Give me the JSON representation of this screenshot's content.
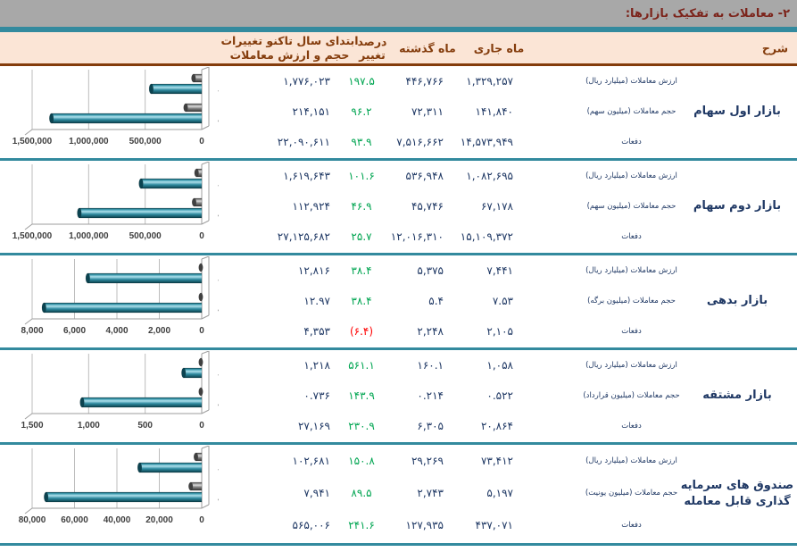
{
  "title": "۲- معاملات به تفکیک بازارها:",
  "colors": {
    "title_bar_bg": "#a8a8a8",
    "title_text": "#7c241b",
    "accent_teal": "#338a9e",
    "header_bg": "#fbe5d6",
    "header_text": "#843c0c",
    "value_navy": "#1f3864",
    "positive_green": "#00a551",
    "negative_red": "#ff0000",
    "bar_teal": "#2f8ba0",
    "bar_gray": "#8c8c8c"
  },
  "header": {
    "description": "شرح",
    "current_month": "ماه جاری",
    "last_month": "ماه گذشته",
    "pct_change": "درصد تغییر",
    "ytd": "ابتدای سال تاکنو تغییرات حجم و ارزش معاملات"
  },
  "sections": [
    {
      "market": "بازار اول سهام",
      "rows": [
        {
          "label": "ارزش معاملات (میلیارد ریال)",
          "current": "۱,۳۲۹,۲۵۷",
          "last": "۴۴۶,۷۶۶",
          "pct": "۱۹۷.۵",
          "negative": false,
          "ytd": "۱,۷۷۶,۰۲۳"
        },
        {
          "label": "حجم معاملات (میلیون سهم)",
          "current": "۱۴۱,۸۴۰",
          "last": "۷۲,۳۱۱",
          "pct": "۹۶.۲",
          "negative": false,
          "ytd": "۲۱۴,۱۵۱"
        },
        {
          "label": "دفعات",
          "current": "۱۴,۵۷۳,۹۴۹",
          "last": "۷,۵۱۶,۶۶۲",
          "pct": "۹۳.۹",
          "negative": false,
          "ytd": "۲۲,۰۹۰,۶۱۱"
        }
      ]
    },
    {
      "market": "بازار دوم سهام",
      "rows": [
        {
          "label": "ارزش معاملات (میلیارد ریال)",
          "current": "۱,۰۸۲,۶۹۵",
          "last": "۵۳۶,۹۴۸",
          "pct": "۱۰۱.۶",
          "negative": false,
          "ytd": "۱,۶۱۹,۶۴۳"
        },
        {
          "label": "حجم معاملات (میلیون سهم)",
          "current": "۶۷,۱۷۸",
          "last": "۴۵,۷۴۶",
          "pct": "۴۶.۹",
          "negative": false,
          "ytd": "۱۱۲,۹۲۴"
        },
        {
          "label": "دفعات",
          "current": "۱۵,۱۰۹,۳۷۲",
          "last": "۱۲,۰۱۶,۳۱۰",
          "pct": "۲۵.۷",
          "negative": false,
          "ytd": "۲۷,۱۲۵,۶۸۲"
        }
      ]
    },
    {
      "market": "بازار بدهی",
      "rows": [
        {
          "label": "ارزش معاملات (میلیارد ریال)",
          "current": "۷,۴۴۱",
          "last": "۵,۳۷۵",
          "pct": "۳۸.۴",
          "negative": false,
          "ytd": "۱۲,۸۱۶"
        },
        {
          "label": "حجم معاملات (میلیون برگه)",
          "current": "۷.۵۳",
          "last": "۵.۴",
          "pct": "۳۸.۴",
          "negative": false,
          "ytd": "۱۲.۹۷"
        },
        {
          "label": "دفعات",
          "current": "۲,۱۰۵",
          "last": "۲,۲۴۸",
          "pct": "(۶.۴)",
          "negative": true,
          "ytd": "۴,۳۵۳"
        }
      ]
    },
    {
      "market": "بازار مشتقه",
      "rows": [
        {
          "label": "ارزش معاملات (میلیارد ریال)",
          "current": "۱,۰۵۸",
          "last": "۱۶۰.۱",
          "pct": "۵۶۱.۱",
          "negative": false,
          "ytd": "۱,۲۱۸"
        },
        {
          "label": "حجم معاملات (میلیون قرارداد)",
          "current": "۰.۵۲۲",
          "last": "۰.۲۱۴",
          "pct": "۱۴۳.۹",
          "negative": false,
          "ytd": "۰.۷۳۶"
        },
        {
          "label": "دفعات",
          "current": "۲۰,۸۶۴",
          "last": "۶,۳۰۵",
          "pct": "۲۳۰.۹",
          "negative": false,
          "ytd": "۲۷,۱۶۹"
        }
      ]
    },
    {
      "market": "صندوق های سرمایه گذاری قابل معامله",
      "rows": [
        {
          "label": "ارزش معاملات (میلیارد ریال)",
          "current": "۷۳,۴۱۲",
          "last": "۲۹,۲۶۹",
          "pct": "۱۵۰.۸",
          "negative": false,
          "ytd": "۱۰۲,۶۸۱"
        },
        {
          "label": "حجم معاملات (میلیون یونیت)",
          "current": "۵,۱۹۷",
          "last": "۲,۷۴۳",
          "pct": "۸۹.۵",
          "negative": false,
          "ytd": "۷,۹۴۱"
        },
        {
          "label": "دفعات",
          "current": "۴۳۷,۰۷۱",
          "last": "۱۲۷,۹۳۵",
          "pct": "۲۴۱.۶",
          "negative": false,
          "ytd": "۵۶۵,۰۰۶"
        }
      ]
    }
  ],
  "chart_data": [
    {
      "type": "bar",
      "orientation": "horizontal-rtl",
      "categories": [
        "ماه گذشته",
        "ماه جاری"
      ],
      "series": [
        {
          "name": "حجم معاملات",
          "color": "#8c8c8c",
          "values": [
            72311,
            141840
          ]
        },
        {
          "name": "ارزش معاملات",
          "color": "#2f8ba0",
          "values": [
            446766,
            1329257
          ]
        }
      ],
      "xlim": [
        0,
        1500000
      ],
      "grid": true,
      "legend": "none",
      "tick_labels": [
        "1,500,000",
        "1,000,000",
        "500,000",
        "0"
      ],
      "tick_values": [
        1500000,
        1000000,
        500000,
        0
      ]
    },
    {
      "type": "bar",
      "orientation": "horizontal-rtl",
      "categories": [
        "ماه گذشته",
        "ماه جاری"
      ],
      "series": [
        {
          "name": "حجم معاملات",
          "color": "#8c8c8c",
          "values": [
            45746,
            67178
          ]
        },
        {
          "name": "ارزش معاملات",
          "color": "#2f8ba0",
          "values": [
            536948,
            1082695
          ]
        }
      ],
      "xlim": [
        0,
        1500000
      ],
      "grid": true,
      "legend": "none",
      "tick_labels": [
        "1,500,000",
        "1,000,000",
        "500,000",
        "0"
      ],
      "tick_values": [
        1500000,
        1000000,
        500000,
        0
      ]
    },
    {
      "type": "bar",
      "orientation": "horizontal-rtl",
      "categories": [
        "ماه گذشته",
        "ماه جاری"
      ],
      "series": [
        {
          "name": "حجم معاملات",
          "color": "#8c8c8c",
          "values": [
            5.4,
            7.53
          ]
        },
        {
          "name": "ارزش معاملات",
          "color": "#2f8ba0",
          "values": [
            5375,
            7441
          ]
        }
      ],
      "xlim": [
        0,
        8000
      ],
      "grid": true,
      "legend": "none",
      "tick_labels": [
        "8,000",
        "6,000",
        "4,000",
        "2,000",
        "0"
      ],
      "tick_values": [
        8000,
        6000,
        4000,
        2000,
        0
      ]
    },
    {
      "type": "bar",
      "orientation": "horizontal-rtl",
      "categories": [
        "ماه گذشته",
        "ماه جاری"
      ],
      "series": [
        {
          "name": "حجم معاملات",
          "color": "#8c8c8c",
          "values": [
            0.214,
            0.522
          ]
        },
        {
          "name": "ارزش معاملات",
          "color": "#2f8ba0",
          "values": [
            160.1,
            1058
          ]
        }
      ],
      "xlim": [
        0,
        1500
      ],
      "grid": true,
      "legend": "none",
      "tick_labels": [
        "1,500",
        "1,000",
        "500",
        "0"
      ],
      "tick_values": [
        1500,
        1000,
        500,
        0
      ]
    },
    {
      "type": "bar",
      "orientation": "horizontal-rtl",
      "categories": [
        "ماه گذشته",
        "ماه جاری"
      ],
      "series": [
        {
          "name": "حجم معاملات",
          "color": "#8c8c8c",
          "values": [
            2743,
            5197
          ]
        },
        {
          "name": "ارزش معاملات",
          "color": "#2f8ba0",
          "values": [
            29269,
            73412
          ]
        }
      ],
      "xlim": [
        0,
        80000
      ],
      "grid": true,
      "legend": "none",
      "tick_labels": [
        "80,000",
        "60,000",
        "40,000",
        "20,000",
        "0"
      ],
      "tick_values": [
        80000,
        60000,
        40000,
        20000,
        0
      ]
    }
  ]
}
